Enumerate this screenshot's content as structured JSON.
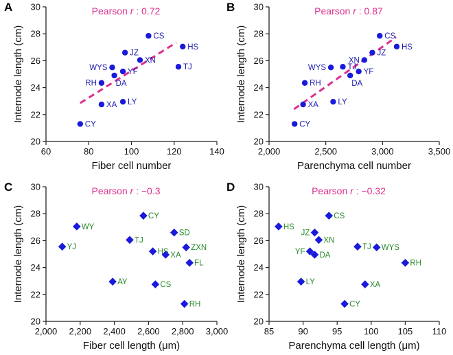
{
  "colors": {
    "blue": "#1a1adb",
    "label_blue": "#1f1fb0",
    "green": "#2a8a2a",
    "pink": "#dd2f8f",
    "axis": "#222222"
  },
  "chart_data": [
    {
      "panel": "A",
      "type": "scatter",
      "marker": "circle",
      "pearson_prefix": "Pearson ",
      "pearson_r": "r",
      "pearson_value": " : 0.72",
      "xlabel": "Fiber cell number",
      "ylabel": "Internode length (cm)",
      "xlim": [
        60,
        140
      ],
      "ylim": [
        20,
        30
      ],
      "xticks": [
        60,
        80,
        100,
        120,
        140
      ],
      "xtick_labels": [
        "60",
        "80",
        "100",
        "120",
        "140"
      ],
      "yticks": [
        20,
        22,
        24,
        26,
        28,
        30
      ],
      "ytick_labels": [
        "20",
        "22",
        "24",
        "26",
        "28",
        "30"
      ],
      "trendline": {
        "x": [
          76,
          121
        ],
        "y": [
          22.85,
          27.35
        ]
      },
      "points": [
        {
          "label": "CS",
          "x": 108,
          "y": 27.85,
          "pos": "right"
        },
        {
          "label": "HS",
          "x": 124,
          "y": 27.05,
          "pos": "right"
        },
        {
          "label": "JZ",
          "x": 97,
          "y": 26.6,
          "pos": "right"
        },
        {
          "label": "XN",
          "x": 104,
          "y": 26.05,
          "pos": "right"
        },
        {
          "label": "TJ",
          "x": 122,
          "y": 25.55,
          "pos": "right"
        },
        {
          "label": "WYS",
          "x": 91,
          "y": 25.5,
          "pos": "left"
        },
        {
          "label": "YF",
          "x": 96,
          "y": 25.2,
          "pos": "right"
        },
        {
          "label": "DA",
          "x": 92,
          "y": 24.9,
          "pos": "belowright"
        },
        {
          "label": "RH",
          "x": 86,
          "y": 24.35,
          "pos": "left"
        },
        {
          "label": "XA",
          "x": 86,
          "y": 22.75,
          "pos": "right"
        },
        {
          "label": "LY",
          "x": 96,
          "y": 22.95,
          "pos": "right"
        },
        {
          "label": "CY",
          "x": 76,
          "y": 21.3,
          "pos": "right"
        }
      ]
    },
    {
      "panel": "B",
      "type": "scatter",
      "marker": "circle",
      "pearson_prefix": "Pearson ",
      "pearson_r": "r",
      "pearson_value": " : 0.87",
      "xlabel": "Parenchyma cell number",
      "ylabel": "Internode length (cm)",
      "xlim": [
        2000,
        3500
      ],
      "ylim": [
        20,
        30
      ],
      "xticks": [
        2000,
        2500,
        3000,
        3500
      ],
      "xtick_labels": [
        "2,000",
        "2,500",
        "3,000",
        "3,500"
      ],
      "yticks": [
        20,
        22,
        24,
        26,
        28,
        30
      ],
      "ytick_labels": [
        "20",
        "22",
        "24",
        "26",
        "28",
        "30"
      ],
      "trendline": {
        "x": [
          2220,
          3120
        ],
        "y": [
          22.4,
          27.75
        ]
      },
      "points": [
        {
          "label": "CS",
          "x": 2975,
          "y": 27.85,
          "pos": "right"
        },
        {
          "label": "HS",
          "x": 3125,
          "y": 27.05,
          "pos": "right"
        },
        {
          "label": "JZ",
          "x": 2910,
          "y": 26.6,
          "pos": "right"
        },
        {
          "label": "XN",
          "x": 2840,
          "y": 26.05,
          "pos": "left"
        },
        {
          "label": "TJ",
          "x": 2650,
          "y": 25.55,
          "pos": "right"
        },
        {
          "label": "WYS",
          "x": 2545,
          "y": 25.5,
          "pos": "left"
        },
        {
          "label": "YF",
          "x": 2790,
          "y": 25.2,
          "pos": "right"
        },
        {
          "label": "DA",
          "x": 2715,
          "y": 24.9,
          "pos": "belowright"
        },
        {
          "label": "RH",
          "x": 2315,
          "y": 24.35,
          "pos": "right"
        },
        {
          "label": "XA",
          "x": 2300,
          "y": 22.75,
          "pos": "right"
        },
        {
          "label": "LY",
          "x": 2565,
          "y": 22.95,
          "pos": "right"
        },
        {
          "label": "CY",
          "x": 2225,
          "y": 21.3,
          "pos": "right"
        }
      ]
    },
    {
      "panel": "C",
      "type": "scatter",
      "marker": "diamond",
      "pearson_prefix": "Pearson ",
      "pearson_r": "r",
      "pearson_value": " : −0.3",
      "xlabel": "Fiber cell length (μm)",
      "ylabel": "Internode length (cm)",
      "xlim": [
        2000,
        3000
      ],
      "ylim": [
        20,
        30
      ],
      "xticks": [
        2000,
        2200,
        2400,
        2600,
        2800,
        3000
      ],
      "xtick_labels": [
        "2,000",
        "2,200",
        "2,400",
        "2,600",
        "2,800",
        "3,000"
      ],
      "yticks": [
        20,
        22,
        24,
        26,
        28,
        30
      ],
      "ytick_labels": [
        "20",
        "22",
        "24",
        "26",
        "28",
        "30"
      ],
      "points": [
        {
          "label": "CY",
          "x": 2570,
          "y": 27.85,
          "pos": "right"
        },
        {
          "label": "WY",
          "x": 2180,
          "y": 27.05,
          "pos": "right"
        },
        {
          "label": "SD",
          "x": 2750,
          "y": 26.6,
          "pos": "right"
        },
        {
          "label": "TJ",
          "x": 2490,
          "y": 26.05,
          "pos": "right"
        },
        {
          "label": "YJ",
          "x": 2095,
          "y": 25.55,
          "pos": "right"
        },
        {
          "label": "ZXN",
          "x": 2820,
          "y": 25.5,
          "pos": "right"
        },
        {
          "label": "HS",
          "x": 2625,
          "y": 25.2,
          "pos": "right"
        },
        {
          "label": "XA",
          "x": 2700,
          "y": 24.95,
          "pos": "right"
        },
        {
          "label": "FL",
          "x": 2840,
          "y": 24.35,
          "pos": "right"
        },
        {
          "label": "AY",
          "x": 2390,
          "y": 22.95,
          "pos": "right"
        },
        {
          "label": "CS",
          "x": 2640,
          "y": 22.75,
          "pos": "right"
        },
        {
          "label": "RH",
          "x": 2810,
          "y": 21.3,
          "pos": "right"
        }
      ]
    },
    {
      "panel": "D",
      "type": "scatter",
      "marker": "diamond",
      "pearson_prefix": "Pearson ",
      "pearson_r": "r",
      "pearson_value": " : −0.32",
      "xlabel": "Parenchyma cell length (μm)",
      "ylabel": "Internode length (cm)",
      "xlim": [
        85,
        110
      ],
      "ylim": [
        20,
        30
      ],
      "xticks": [
        85,
        90,
        95,
        100,
        105,
        110
      ],
      "xtick_labels": [
        "85",
        "90",
        "95",
        "100",
        "105",
        "110"
      ],
      "yticks": [
        20,
        22,
        24,
        26,
        28,
        30
      ],
      "ytick_labels": [
        "20",
        "22",
        "24",
        "26",
        "28",
        "30"
      ],
      "points": [
        {
          "label": "CS",
          "x": 93.8,
          "y": 27.85,
          "pos": "right"
        },
        {
          "label": "HS",
          "x": 86.4,
          "y": 27.05,
          "pos": "right"
        },
        {
          "label": "JZ",
          "x": 91.7,
          "y": 26.6,
          "pos": "left"
        },
        {
          "label": "XN",
          "x": 92.3,
          "y": 26.05,
          "pos": "right"
        },
        {
          "label": "TJ",
          "x": 98,
          "y": 25.55,
          "pos": "right"
        },
        {
          "label": "WYS",
          "x": 100.8,
          "y": 25.5,
          "pos": "right"
        },
        {
          "label": "YF",
          "x": 91,
          "y": 25.2,
          "pos": "left"
        },
        {
          "label": "DA",
          "x": 91.7,
          "y": 24.95,
          "pos": "right"
        },
        {
          "label": "RH",
          "x": 105,
          "y": 24.35,
          "pos": "right"
        },
        {
          "label": "LY",
          "x": 89.7,
          "y": 22.95,
          "pos": "right"
        },
        {
          "label": "XA",
          "x": 99.1,
          "y": 22.75,
          "pos": "right"
        },
        {
          "label": "CY",
          "x": 96.1,
          "y": 21.3,
          "pos": "right"
        }
      ]
    }
  ]
}
